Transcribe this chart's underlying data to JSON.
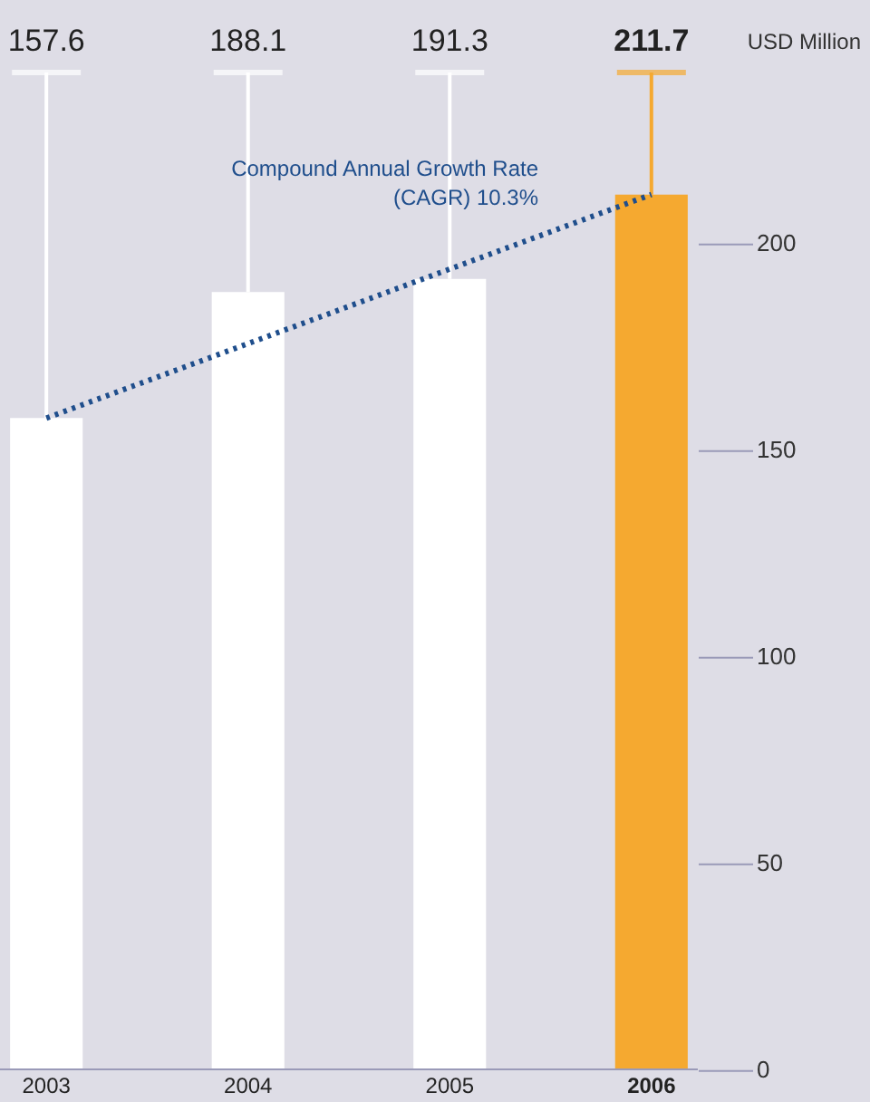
{
  "chart_data": {
    "type": "bar",
    "categories": [
      "2003",
      "2004",
      "2005",
      "2006"
    ],
    "values": [
      157.6,
      188.1,
      191.3,
      211.7
    ],
    "value_labels": [
      "157.6",
      "188.1",
      "191.3",
      "211.7"
    ],
    "colors": [
      "#ffffff",
      "#ffffff",
      "#ffffff",
      "#f5a930"
    ],
    "series": [
      {
        "type": "line",
        "values": [
          157.6,
          null,
          null,
          211.7
        ],
        "color": "#1f4e8c",
        "line_style": "dotted"
      }
    ],
    "annotations": [
      "Compound Annual Growth Rate\n(CAGR) 10.3%",
      "USD Million"
    ],
    "ylim": [
      0,
      211.7
    ],
    "yticks": [
      0,
      50,
      100,
      150,
      200
    ],
    "grid": false
  }
}
